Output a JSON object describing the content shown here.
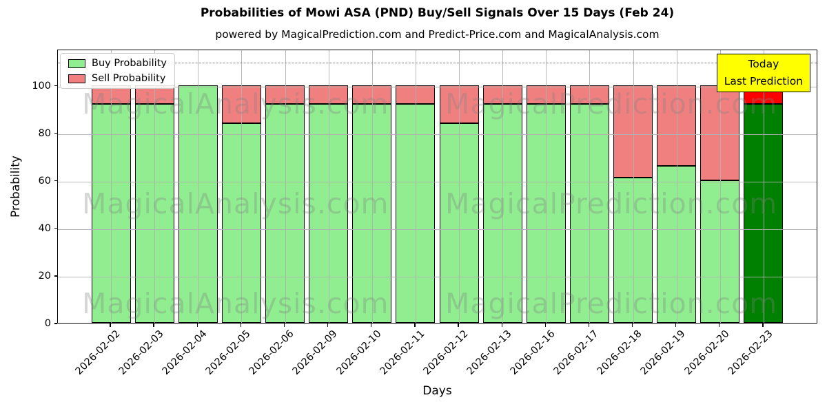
{
  "figure": {
    "title": "Probabilities of Mowi ASA (PND) Buy/Sell Signals Over 15 Days (Feb 24)",
    "subtitle": "powered by MagicalPrediction.com and Predict-Price.com and MagicalAnalysis.com"
  },
  "chart_data": {
    "type": "bar",
    "stacked": true,
    "title": "Probabilities of Mowi ASA (PND) Buy/Sell Signals Over 15 Days (Feb 24)",
    "subtitle": "powered by MagicalPrediction.com and Predict-Price.com and MagicalAnalysis.com",
    "xlabel": "Days",
    "ylabel": "Probability",
    "categories": [
      "2026-02-02",
      "2026-02-03",
      "2026-02-04",
      "2026-02-05",
      "2026-02-06",
      "2026-02-09",
      "2026-02-10",
      "2026-02-11",
      "2026-02-12",
      "2026-02-13",
      "2026-02-16",
      "2026-02-17",
      "2026-02-18",
      "2026-02-19",
      "2026-02-20",
      "2026-02-23"
    ],
    "series": [
      {
        "name": "Buy Probability",
        "color": "#90ee90",
        "values": [
          92,
          92,
          100,
          84,
          92,
          92,
          92,
          92,
          84,
          92,
          92,
          92,
          61,
          66,
          60,
          92
        ]
      },
      {
        "name": "Sell Probability",
        "color": "#f08080",
        "values": [
          8,
          8,
          0,
          16,
          8,
          8,
          8,
          8,
          16,
          8,
          8,
          8,
          39,
          34,
          40,
          8
        ]
      }
    ],
    "today": {
      "index": 15,
      "buy_color": "#008000",
      "sell_color": "#ff0000"
    },
    "ylim": [
      0,
      115
    ],
    "yticks": [
      0,
      20,
      40,
      60,
      80,
      100
    ],
    "dashed_hline": 110,
    "grid": true,
    "legend_position": "upper left",
    "bar_edge_color": "#000000",
    "grid_color": "#b0b0b0"
  },
  "annotation": {
    "line1": "Today",
    "line2": "Last Prediction",
    "bg": "#ffff00"
  },
  "watermarks": {
    "left": "MagicalAnalysis.com",
    "right": "MagicalPrediction.com",
    "rows": 3
  }
}
